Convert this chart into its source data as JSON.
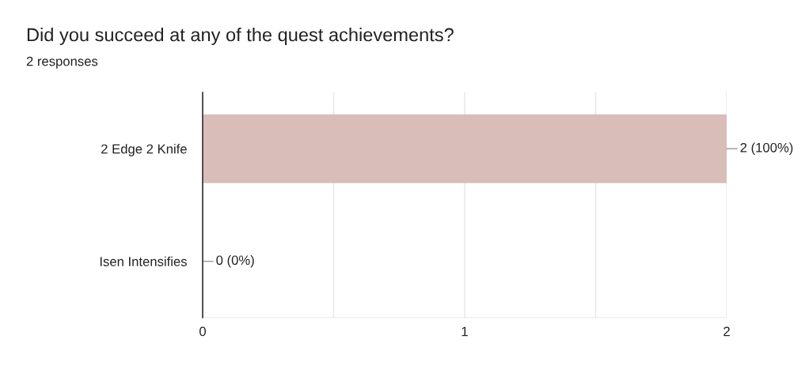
{
  "chart_data": {
    "type": "bar",
    "orientation": "horizontal",
    "title": "Did you succeed at any of the quest achievements?",
    "subtitle": "2 responses",
    "categories": [
      "2 Edge 2 Knife",
      "Isen Intensifies"
    ],
    "values": [
      2,
      0
    ],
    "color": "#d9bdb9",
    "value_labels": [
      "2 (100%)",
      "0 (0%)"
    ],
    "xlim": [
      0,
      2
    ],
    "xticks": [
      0,
      {
        "value": 0.5,
        "label": null
      },
      1,
      {
        "value": 1.5,
        "label": null
      },
      2
    ],
    "grid": "x",
    "legend": false
  }
}
